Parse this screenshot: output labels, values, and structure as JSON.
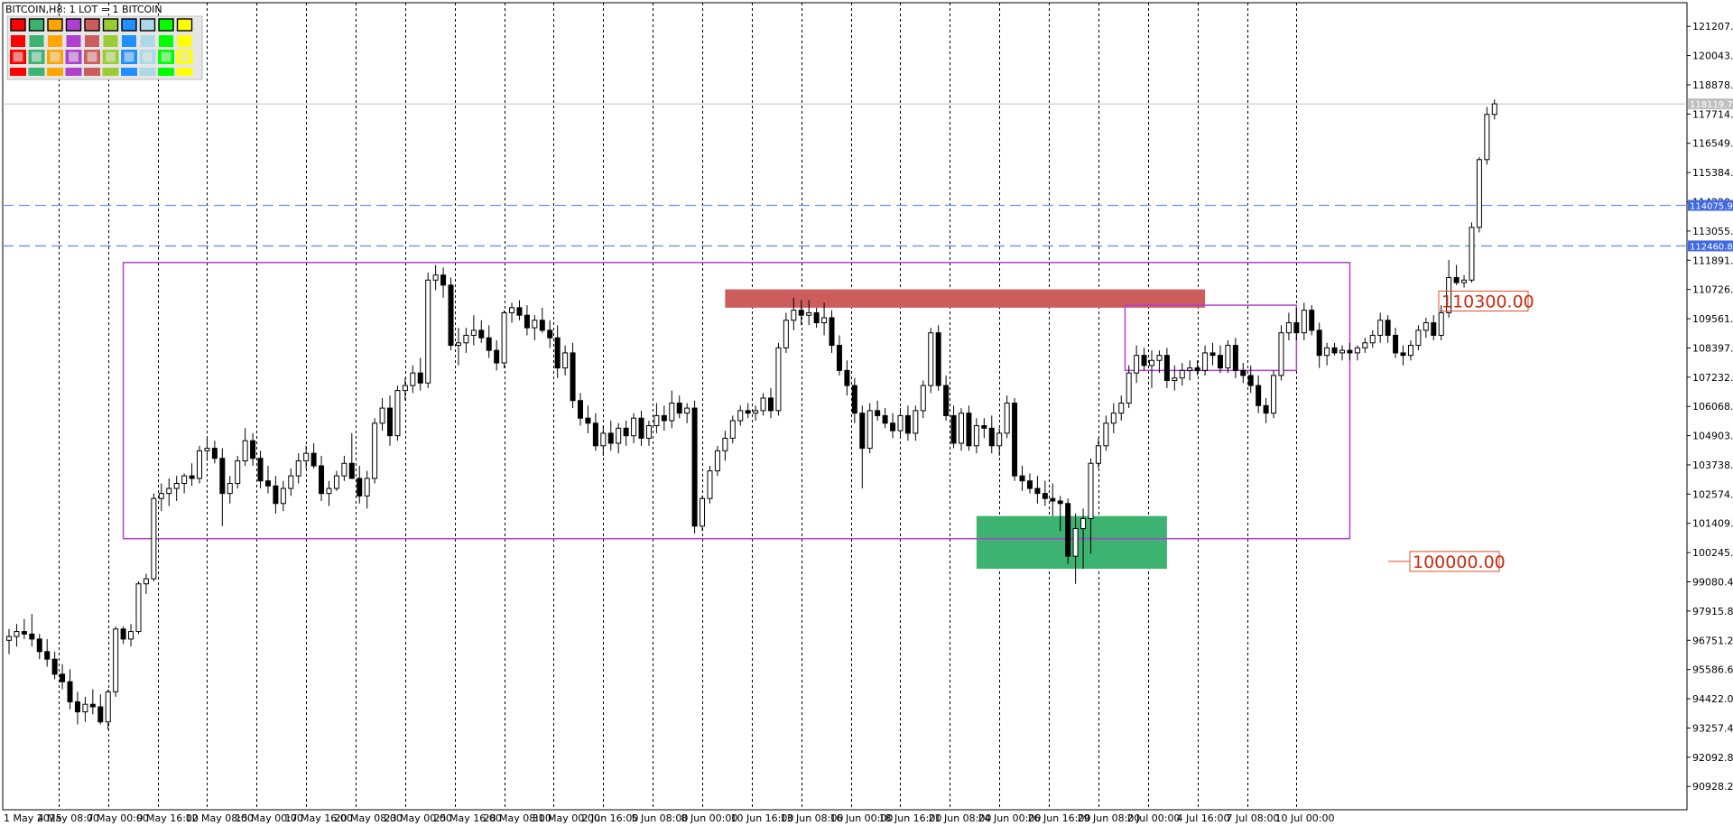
{
  "chart_title": "BITCOIN,H8:  1 LOT = 1 BITCOIN",
  "chart_data": {
    "type": "candlestick",
    "symbol": "BITCOIN",
    "timeframe": "H8",
    "ylim": [
      90000,
      122150
    ],
    "y_ticks": [
      "121207.80",
      "120043.20",
      "118878.60",
      "117714.00",
      "116549.40",
      "115384.80",
      "114220.20",
      "113055.60",
      "111891.00",
      "110726.40",
      "109561.80",
      "108397.20",
      "107232.60",
      "106068.00",
      "104903.40",
      "103738.80",
      "102574.20",
      "101409.60",
      "100245.00",
      "99080.40",
      "97915.80",
      "96751.20",
      "95586.60",
      "94422.00",
      "93257.40",
      "92092.80",
      "90928.20"
    ],
    "x_ticks": [
      "1 May 2025",
      "4 May 08:00",
      "7 May 00:00",
      "9 May 16:00",
      "12 May 08:00",
      "15 May 00:00",
      "17 May 16:00",
      "20 May 08:00",
      "23 May 00:00",
      "25 May 16:00",
      "28 May 08:00",
      "31 May 00:00",
      "2 Jun 16:00",
      "5 Jun 08:00",
      "8 Jun 00:00",
      "10 Jun 16:00",
      "13 Jun 08:00",
      "16 Jun 00:00",
      "18 Jun 16:00",
      "21 Jun 08:00",
      "24 Jun 00:00",
      "26 Jun 16:00",
      "29 Jun 08:00",
      "2 Jul 00:00",
      "4 Jul 16:00",
      "7 Jul 08:00",
      "10 Jul 00:00"
    ],
    "current_price": "118119.78",
    "price_tags": [
      {
        "label": "114075.95",
        "value": 114075.95,
        "color": "#4169e1"
      },
      {
        "label": "112460.81",
        "value": 112460.81,
        "color": "#4169e1"
      }
    ],
    "horizontal_lines": [
      114075.95,
      112460.81
    ],
    "levels": [
      {
        "label": "110300.00",
        "value": 110300
      },
      {
        "label": "100000.00",
        "value": 100000
      }
    ],
    "zones": [
      {
        "kind": "supply",
        "color": "#cd5c5c",
        "y_from": 110000,
        "y_to": 110730,
        "x_from": 94,
        "x_to": 157
      },
      {
        "kind": "demand",
        "color": "#3cb371",
        "y_from": 99600,
        "y_to": 101700,
        "x_from": 127,
        "x_to": 152
      }
    ],
    "ranges": [
      {
        "color": "#b040d0",
        "y_from": 100800,
        "y_to": 111800,
        "x_from": 15,
        "x_to": 176
      },
      {
        "color": "#b040d0",
        "y_from": 107500,
        "y_to": 110100,
        "x_from": 146.5,
        "x_to": 169
      }
    ],
    "candles": [
      [
        96750,
        97200,
        96200,
        96900
      ],
      [
        96900,
        97400,
        96500,
        97100
      ],
      [
        97100,
        97600,
        96800,
        97000
      ],
      [
        97000,
        97800,
        96500,
        96800
      ],
      [
        96800,
        97000,
        96000,
        96300
      ],
      [
        96300,
        96800,
        95700,
        96000
      ],
      [
        96000,
        96300,
        95200,
        95400
      ],
      [
        95400,
        95800,
        94800,
        95100
      ],
      [
        95100,
        95600,
        94000,
        94300
      ],
      [
        94300,
        94700,
        93400,
        93900
      ],
      [
        93900,
        94500,
        93500,
        94200
      ],
      [
        94200,
        94800,
        93800,
        94100
      ],
      [
        94100,
        94600,
        93400,
        93500
      ],
      [
        93500,
        94800,
        93200,
        94700
      ],
      [
        94700,
        97300,
        94500,
        97200
      ],
      [
        97200,
        97300,
        96600,
        96800
      ],
      [
        96800,
        97400,
        96500,
        97100
      ],
      [
        97100,
        99100,
        97000,
        99000
      ],
      [
        99000,
        99400,
        98600,
        99200
      ],
      [
        99200,
        102600,
        99100,
        102400
      ],
      [
        102400,
        103000,
        101900,
        102600
      ],
      [
        102600,
        103200,
        102100,
        102800
      ],
      [
        102800,
        103300,
        102300,
        103000
      ],
      [
        103000,
        103400,
        102600,
        103300
      ],
      [
        103300,
        103800,
        102900,
        103200
      ],
      [
        103200,
        104500,
        103000,
        104300
      ],
      [
        104300,
        104800,
        103900,
        104400
      ],
      [
        104400,
        104700,
        103800,
        104000
      ],
      [
        104000,
        104400,
        101300,
        102600
      ],
      [
        102600,
        103300,
        102200,
        103000
      ],
      [
        103000,
        104100,
        102800,
        103900
      ],
      [
        103900,
        105200,
        103700,
        104700
      ],
      [
        104700,
        105000,
        103700,
        104000
      ],
      [
        104000,
        104300,
        102800,
        103100
      ],
      [
        103100,
        103700,
        102600,
        102900
      ],
      [
        102900,
        103300,
        101800,
        102200
      ],
      [
        102200,
        103100,
        101900,
        102800
      ],
      [
        102800,
        103600,
        102500,
        103300
      ],
      [
        103300,
        104200,
        103000,
        103900
      ],
      [
        103900,
        104500,
        103600,
        104200
      ],
      [
        104200,
        104600,
        103600,
        103700
      ],
      [
        103700,
        104100,
        102300,
        102600
      ],
      [
        102600,
        103100,
        102100,
        102800
      ],
      [
        102800,
        103500,
        102700,
        103300
      ],
      [
        103300,
        104100,
        103100,
        103800
      ],
      [
        103800,
        105000,
        103500,
        103200
      ],
      [
        103200,
        103700,
        102200,
        102500
      ],
      [
        102500,
        103500,
        102000,
        103200
      ],
      [
        103200,
        105600,
        103000,
        105400
      ],
      [
        105400,
        106400,
        105100,
        106000
      ],
      [
        106000,
        106500,
        104500,
        104900
      ],
      [
        104900,
        106900,
        104700,
        106700
      ],
      [
        106700,
        107200,
        106300,
        106900
      ],
      [
        106900,
        107700,
        106600,
        107400
      ],
      [
        107400,
        108000,
        106700,
        107000
      ],
      [
        107000,
        111400,
        106800,
        111100
      ],
      [
        111100,
        111700,
        110700,
        111300
      ],
      [
        111300,
        111600,
        110400,
        110900
      ],
      [
        110900,
        111200,
        108300,
        108500
      ],
      [
        108500,
        109200,
        107700,
        108600
      ],
      [
        108600,
        109200,
        108200,
        108900
      ],
      [
        108900,
        109700,
        108500,
        109100
      ],
      [
        109100,
        109500,
        108600,
        108800
      ],
      [
        108800,
        109300,
        108000,
        108300
      ],
      [
        108300,
        108700,
        107500,
        107800
      ],
      [
        107800,
        109900,
        107600,
        109800
      ],
      [
        109800,
        110200,
        109400,
        110000
      ],
      [
        110000,
        110300,
        109500,
        109700
      ],
      [
        109700,
        110100,
        108900,
        109200
      ],
      [
        109200,
        109700,
        108700,
        109500
      ],
      [
        109500,
        110000,
        109000,
        109100
      ],
      [
        109100,
        109500,
        108400,
        108800
      ],
      [
        108800,
        109300,
        107200,
        107600
      ],
      [
        107600,
        108500,
        107300,
        108200
      ],
      [
        108200,
        108600,
        106000,
        106300
      ],
      [
        106300,
        106600,
        105300,
        105600
      ],
      [
        105600,
        106100,
        105000,
        105400
      ],
      [
        105400,
        105800,
        104300,
        104500
      ],
      [
        104500,
        105300,
        104100,
        105000
      ],
      [
        105000,
        105500,
        104300,
        104600
      ],
      [
        104600,
        105400,
        104200,
        105200
      ],
      [
        105200,
        105500,
        104500,
        104900
      ],
      [
        104900,
        105800,
        104600,
        105600
      ],
      [
        105600,
        105900,
        104500,
        104800
      ],
      [
        104800,
        105500,
        104500,
        105300
      ],
      [
        105300,
        106200,
        105000,
        105700
      ],
      [
        105700,
        106100,
        105100,
        105500
      ],
      [
        105500,
        106700,
        105200,
        106200
      ],
      [
        106200,
        106500,
        105600,
        105800
      ],
      [
        105800,
        106200,
        105400,
        106000
      ],
      [
        106000,
        106300,
        101000,
        101300
      ],
      [
        101300,
        102500,
        101100,
        102400
      ],
      [
        102400,
        103700,
        102200,
        103500
      ],
      [
        103500,
        104500,
        103300,
        104300
      ],
      [
        104300,
        105100,
        103900,
        104800
      ],
      [
        104800,
        105700,
        104600,
        105500
      ],
      [
        105500,
        106100,
        105300,
        105900
      ],
      [
        105900,
        106200,
        105600,
        105800
      ],
      [
        105800,
        106100,
        105500,
        105900
      ],
      [
        105900,
        106600,
        105700,
        106400
      ],
      [
        106400,
        106800,
        105600,
        105900
      ],
      [
        105900,
        108600,
        105700,
        108400
      ],
      [
        108400,
        109800,
        108200,
        109500
      ],
      [
        109500,
        110400,
        109100,
        109900
      ],
      [
        109900,
        110300,
        109300,
        109700
      ],
      [
        109700,
        110300,
        109300,
        109800
      ],
      [
        109800,
        110000,
        109200,
        109400
      ],
      [
        109400,
        110200,
        108900,
        109600
      ],
      [
        109600,
        109900,
        108200,
        108500
      ],
      [
        108500,
        108900,
        107300,
        107500
      ],
      [
        107500,
        107900,
        106500,
        106900
      ],
      [
        106900,
        107200,
        105400,
        105800
      ],
      [
        105800,
        106100,
        102800,
        104400
      ],
      [
        104400,
        106200,
        104200,
        105900
      ],
      [
        105900,
        106300,
        105500,
        105700
      ],
      [
        105700,
        106000,
        105200,
        105400
      ],
      [
        105400,
        105800,
        104800,
        105100
      ],
      [
        105100,
        106000,
        104900,
        105700
      ],
      [
        105700,
        106100,
        104700,
        105000
      ],
      [
        105000,
        106100,
        104700,
        105900
      ],
      [
        105900,
        107100,
        105600,
        106900
      ],
      [
        106900,
        109200,
        106600,
        109000
      ],
      [
        109000,
        109300,
        106700,
        106900
      ],
      [
        106900,
        107300,
        105500,
        105700
      ],
      [
        105700,
        106100,
        104400,
        104600
      ],
      [
        104600,
        106000,
        104300,
        105800
      ],
      [
        105800,
        106100,
        104300,
        104500
      ],
      [
        104500,
        105600,
        104200,
        105300
      ],
      [
        105300,
        105600,
        104800,
        105200
      ],
      [
        105200,
        105700,
        104200,
        104500
      ],
      [
        104500,
        105200,
        104100,
        105000
      ],
      [
        105000,
        106500,
        104800,
        106200
      ],
      [
        106200,
        106400,
        103100,
        103300
      ],
      [
        103300,
        103700,
        102700,
        103100
      ],
      [
        103100,
        103400,
        102600,
        102800
      ],
      [
        102800,
        103300,
        102200,
        102600
      ],
      [
        102600,
        103100,
        102100,
        102400
      ],
      [
        102400,
        103000,
        101700,
        102300
      ],
      [
        102300,
        102500,
        101100,
        102200
      ],
      [
        102200,
        102400,
        99800,
        100100
      ],
      [
        100100,
        101800,
        99000,
        101200
      ],
      [
        101200,
        102000,
        99600,
        101600
      ],
      [
        101600,
        104000,
        100200,
        103800
      ],
      [
        103800,
        104800,
        103600,
        104500
      ],
      [
        104500,
        105700,
        104300,
        105400
      ],
      [
        105400,
        106200,
        105000,
        105800
      ],
      [
        105800,
        106500,
        105500,
        106200
      ],
      [
        106200,
        107700,
        106000,
        107400
      ],
      [
        107400,
        108500,
        107000,
        108100
      ],
      [
        108100,
        108400,
        107500,
        107700
      ],
      [
        107700,
        108300,
        106800,
        107900
      ],
      [
        107900,
        108300,
        107400,
        108100
      ],
      [
        108100,
        108400,
        106800,
        107100
      ],
      [
        107100,
        107700,
        106700,
        107200
      ],
      [
        107200,
        107800,
        106900,
        107500
      ],
      [
        107500,
        107900,
        107100,
        107600
      ],
      [
        107600,
        107900,
        107300,
        107500
      ],
      [
        107500,
        108500,
        107300,
        108200
      ],
      [
        108200,
        108600,
        107700,
        108100
      ],
      [
        108100,
        108500,
        107400,
        107600
      ],
      [
        107600,
        108700,
        107400,
        108500
      ],
      [
        108500,
        108800,
        107200,
        107500
      ],
      [
        107500,
        107800,
        107000,
        107300
      ],
      [
        107300,
        107700,
        106600,
        106900
      ],
      [
        106900,
        107300,
        105800,
        106100
      ],
      [
        106100,
        106400,
        105400,
        105800
      ],
      [
        105800,
        107500,
        105600,
        107300
      ],
      [
        107300,
        109300,
        107100,
        109000
      ],
      [
        109000,
        109800,
        108700,
        109400
      ],
      [
        109400,
        110000,
        108700,
        109000
      ],
      [
        109000,
        110200,
        108700,
        109900
      ],
      [
        109900,
        110100,
        108900,
        109100
      ],
      [
        109100,
        109400,
        107600,
        108100
      ],
      [
        108100,
        108600,
        107700,
        108400
      ],
      [
        108400,
        108600,
        108100,
        108200
      ],
      [
        108200,
        108500,
        107900,
        108300
      ],
      [
        108300,
        108600,
        107900,
        108200
      ],
      [
        108200,
        108500,
        107900,
        108400
      ],
      [
        108400,
        108800,
        108200,
        108600
      ],
      [
        108600,
        109100,
        108400,
        108900
      ],
      [
        108900,
        109800,
        108600,
        109500
      ],
      [
        109500,
        109700,
        108600,
        108900
      ],
      [
        108900,
        109200,
        108000,
        108200
      ],
      [
        108200,
        108500,
        107700,
        108100
      ],
      [
        108100,
        108700,
        107900,
        108500
      ],
      [
        108500,
        109300,
        108300,
        109100
      ],
      [
        109100,
        109600,
        108800,
        109400
      ],
      [
        109400,
        109700,
        108700,
        108900
      ],
      [
        108900,
        110100,
        108700,
        109800
      ],
      [
        109800,
        111900,
        109600,
        111200
      ],
      [
        111200,
        111700,
        110900,
        111000
      ],
      [
        111000,
        111300,
        110800,
        111100
      ],
      [
        111100,
        113400,
        111000,
        113200
      ],
      [
        113200,
        116000,
        113000,
        115900
      ],
      [
        115900,
        118000,
        115700,
        117700
      ],
      [
        117700,
        118300,
        117500,
        118120
      ]
    ]
  }
}
